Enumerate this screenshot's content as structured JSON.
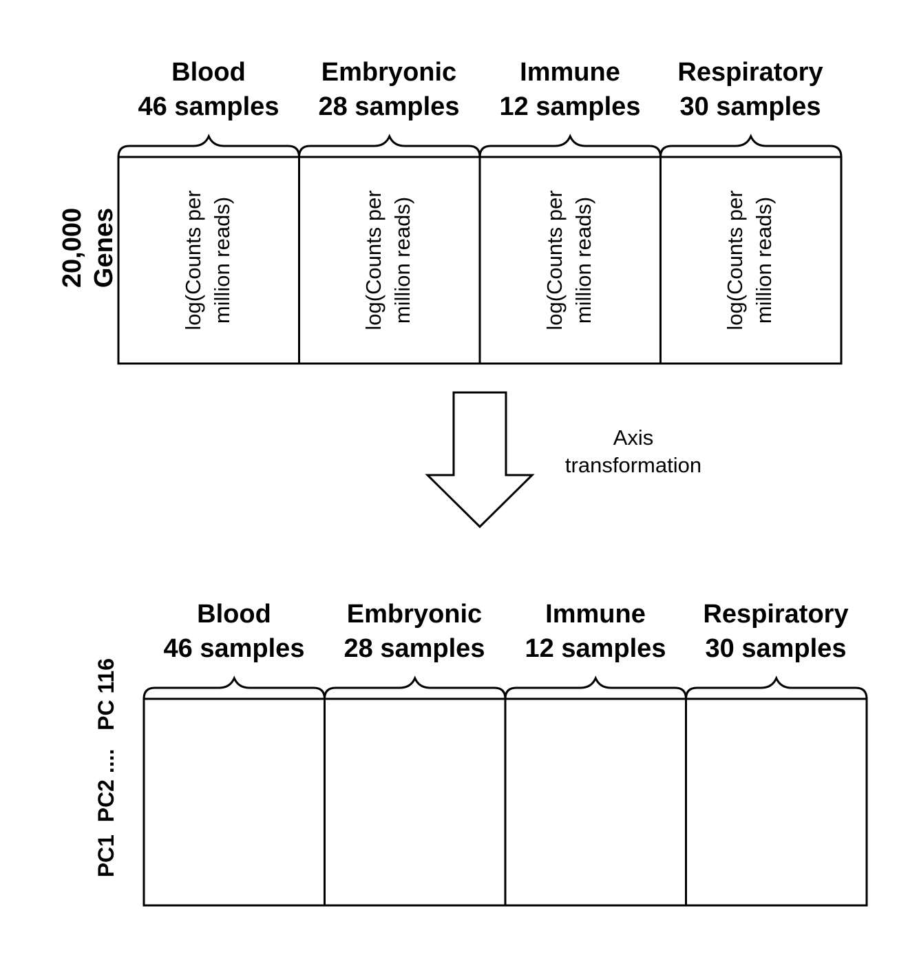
{
  "top_matrix": {
    "row_label": [
      "20,000",
      "Genes"
    ],
    "cell_text": [
      "log(Counts per",
      "million reads)"
    ],
    "groups": [
      {
        "name": "Blood",
        "samples": "46 samples"
      },
      {
        "name": "Embryonic",
        "samples": "28 samples"
      },
      {
        "name": "Immune",
        "samples": "12 samples"
      },
      {
        "name": "Respiratory",
        "samples": "30 samples"
      }
    ]
  },
  "transform": {
    "label": [
      "Axis",
      "transformation"
    ]
  },
  "bottom_matrix": {
    "row_label": "PC1  PC2 ....   PC 116",
    "groups": [
      {
        "name": "Blood",
        "samples": "46 samples"
      },
      {
        "name": "Embryonic",
        "samples": "28 samples"
      },
      {
        "name": "Immune",
        "samples": "12 samples"
      },
      {
        "name": "Respiratory",
        "samples": "30 samples"
      }
    ]
  },
  "colors": {
    "stroke": "#000000",
    "background": "#ffffff"
  }
}
